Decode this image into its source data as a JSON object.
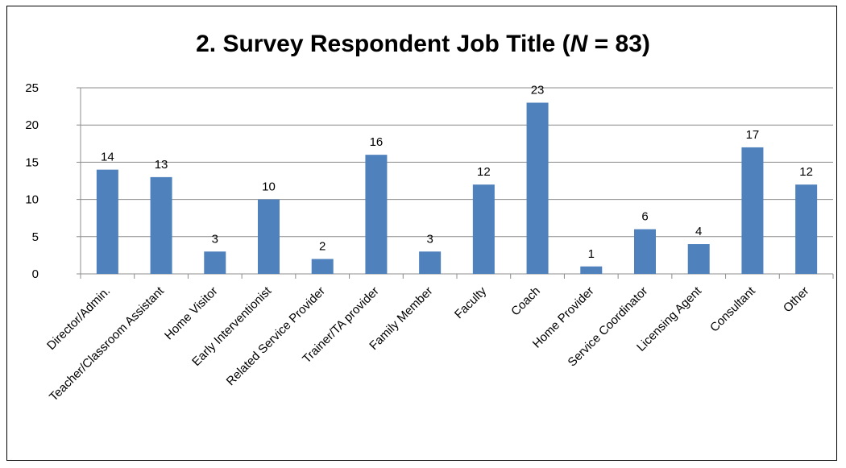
{
  "chart_data": {
    "type": "bar",
    "title_prefix": "2. Survey Respondent Job Title (",
    "title_italic": "N",
    "title_suffix": " = 83)",
    "categories": [
      "Director/Admin.",
      "Teacher/Classroom Assistant",
      "Home Visitor",
      "Early Interventionist",
      "Related Service Provider",
      "Trainer/TA provider",
      "Family Member",
      "Faculty",
      "Coach",
      "Home Provider",
      "Service Coordinator",
      "Licensing Agent",
      "Consultant",
      "Other"
    ],
    "values": [
      14,
      13,
      3,
      10,
      2,
      16,
      3,
      12,
      23,
      1,
      6,
      4,
      17,
      12
    ],
    "ylim": [
      0,
      25
    ],
    "yticks": [
      0,
      5,
      10,
      15,
      20,
      25
    ],
    "grid": true,
    "data_labels": true,
    "legend": "none",
    "colors": {
      "bar": "#4f81bd",
      "grid": "#8c8c8c",
      "axis": "#8c8c8c"
    }
  }
}
